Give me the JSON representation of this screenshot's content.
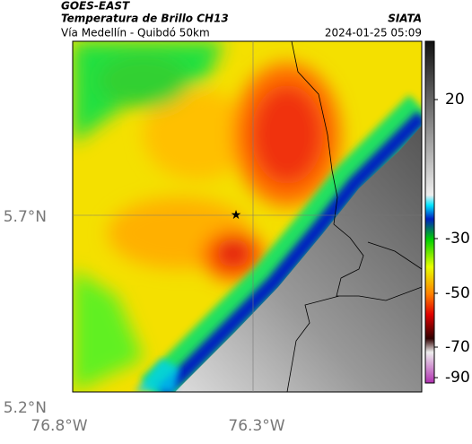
{
  "header": {
    "title": "GOES-EAST",
    "subtitle": "Temperatura de Brillo CH13",
    "source": "SIATA",
    "location": "Vía Medellín - Quibdó 50km",
    "timestamp": "2024-01-25 05:09"
  },
  "axes": {
    "lat_labels": [
      "5.7°N",
      "5.2°N"
    ],
    "lon_labels": [
      "76.8°W",
      "76.3°W"
    ]
  },
  "colorbar": {
    "ticks": [
      20,
      -30,
      -50,
      -70,
      -90
    ]
  }
}
